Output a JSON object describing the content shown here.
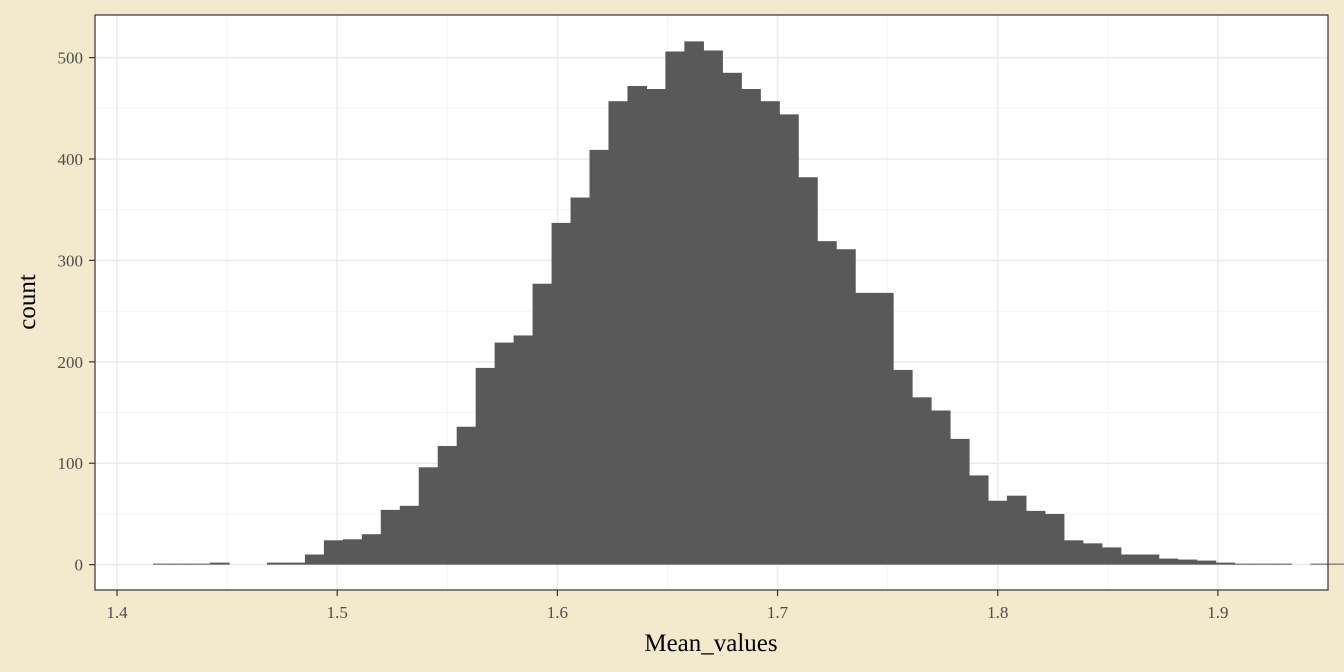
{
  "colors": {
    "page_background": "#f3e9cc",
    "panel_background": "#ffffff",
    "bar_fill": "#595959",
    "grid_major": "#ebebeb",
    "grid_minor": "#f4f4f4",
    "panel_border": "#333333"
  },
  "chart_data": {
    "type": "bar",
    "xlabel": "Mean_values",
    "ylabel": "count",
    "xlim": [
      1.39,
      1.95
    ],
    "ylim": [
      -25,
      542
    ],
    "x_ticks": [
      1.4,
      1.5,
      1.6,
      1.7,
      1.8,
      1.9
    ],
    "x_tick_labels": [
      "1.4",
      "1.5",
      "1.6",
      "1.7",
      "1.8",
      "1.9"
    ],
    "y_ticks": [
      0,
      100,
      200,
      300,
      400,
      500
    ],
    "y_tick_labels": [
      "0",
      "100",
      "200",
      "300",
      "400",
      "500"
    ],
    "grid": true,
    "bin_width": 0.008617,
    "bin_start": 1.4164,
    "values": [
      1,
      1,
      1,
      2,
      0,
      0,
      2,
      2,
      10,
      24,
      25,
      30,
      54,
      58,
      96,
      117,
      136,
      194,
      219,
      226,
      277,
      337,
      362,
      409,
      457,
      472,
      469,
      506,
      516,
      507,
      485,
      469,
      457,
      444,
      382,
      319,
      311,
      268,
      268,
      192,
      165,
      152,
      124,
      88,
      63,
      68,
      53,
      50,
      24,
      21,
      17,
      10,
      10,
      6,
      5,
      4,
      2,
      1,
      1,
      1,
      0,
      1,
      1
    ]
  }
}
